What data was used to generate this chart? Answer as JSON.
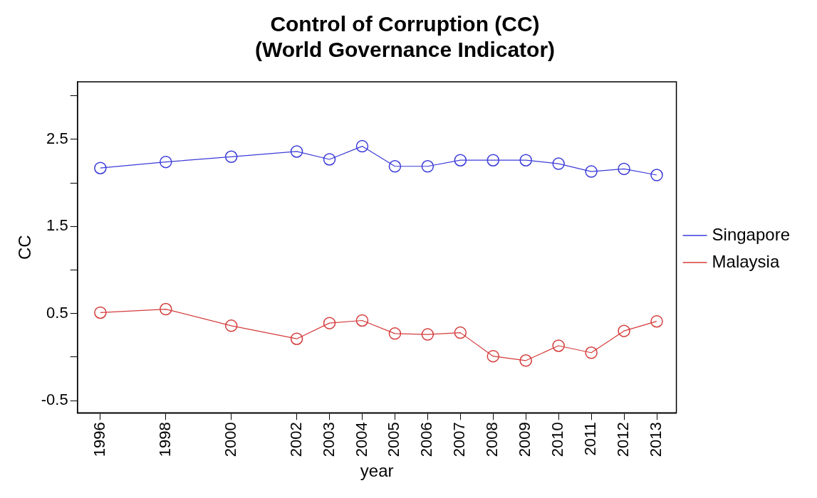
{
  "chart_data": {
    "type": "line",
    "title": "Control of Corruption (CC)\n(World Governance Indicator)",
    "xlabel": "year",
    "ylabel": "CC",
    "x": [
      1996,
      1998,
      2000,
      2002,
      2003,
      2004,
      2005,
      2006,
      2007,
      2008,
      2009,
      2010,
      2011,
      2012,
      2013
    ],
    "series": [
      {
        "name": "Singapore",
        "color": "#3b3bd9",
        "values": [
          2.17,
          2.24,
          2.3,
          2.36,
          2.27,
          2.42,
          2.19,
          2.19,
          2.26,
          2.26,
          2.26,
          2.22,
          2.13,
          2.16,
          2.09
        ]
      },
      {
        "name": "Malaysia",
        "color": "#d43b3b",
        "values": [
          0.51,
          0.55,
          0.36,
          0.21,
          0.39,
          0.42,
          0.27,
          0.26,
          0.28,
          0.01,
          -0.04,
          0.13,
          0.05,
          0.3,
          0.41
        ]
      }
    ],
    "xlim": [
      1995.3,
      2013.6
    ],
    "xticks": [
      1996,
      1998,
      2000,
      2002,
      2003,
      2004,
      2005,
      2006,
      2007,
      2008,
      2009,
      2010,
      2011,
      2012,
      2013
    ],
    "ylim": [
      -0.64,
      3.16
    ],
    "yticks": [
      -0.5,
      {
        "value": 0,
        "label": null
      },
      0.5,
      {
        "value": 1,
        "label": null
      },
      1.5,
      {
        "value": 2,
        "label": null
      },
      2.5,
      {
        "value": 3,
        "label": null
      }
    ],
    "grid": false,
    "legend": "right",
    "marker": "circle",
    "line_style": "solid"
  }
}
